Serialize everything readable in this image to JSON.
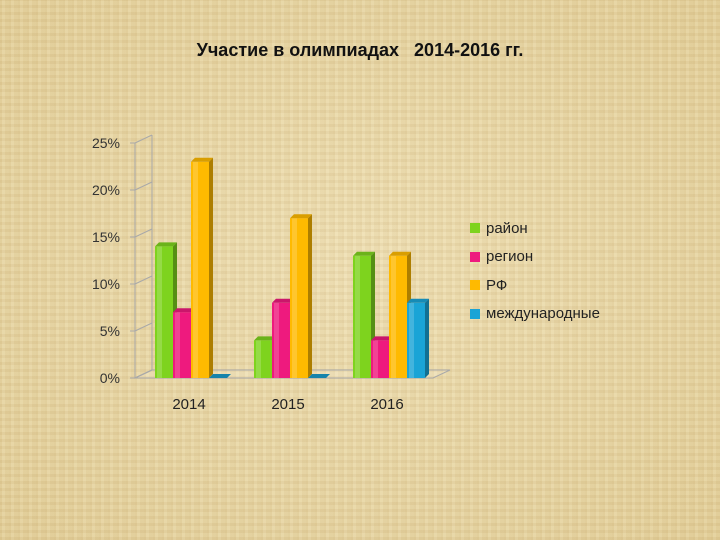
{
  "title": "Участие в олимпиадах   2014-2016 гг.",
  "chart_data": {
    "type": "bar",
    "title": "Участие в олимпиадах   2014-2016 гг.",
    "categories": [
      "2014",
      "2015",
      "2016"
    ],
    "series": [
      {
        "name": "район",
        "color": "#7ed31e",
        "values": [
          14,
          4,
          13
        ]
      },
      {
        "name": "регион",
        "color": "#ee1a7e",
        "values": [
          7,
          8,
          4
        ]
      },
      {
        "name": "РФ",
        "color": "#ffba00",
        "values": [
          23,
          17,
          13
        ]
      },
      {
        "name": "международные",
        "color": "#1aa4d6",
        "values": [
          0,
          0,
          8
        ]
      }
    ],
    "ylim": [
      0,
      25
    ],
    "yticks": [
      "0%",
      "5%",
      "10%",
      "15%",
      "20%",
      "25%"
    ],
    "ytick_values": [
      0,
      5,
      10,
      15,
      20,
      25
    ],
    "y_unit": "%",
    "xlabel": "",
    "ylabel": "",
    "legend": "right",
    "grid": false
  }
}
